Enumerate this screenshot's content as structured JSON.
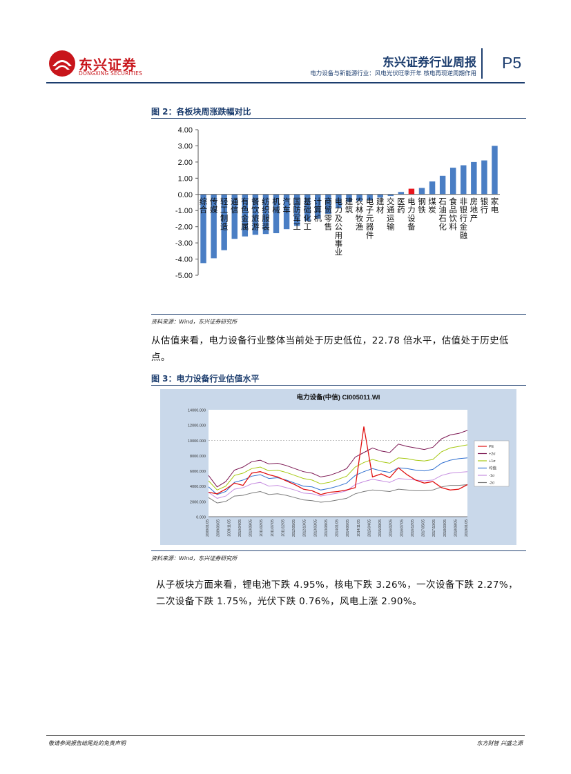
{
  "header": {
    "logo_cn": "东兴证券",
    "logo_en": "DONGXING SECURITIES",
    "title": "东兴证券行业周报",
    "subtitle": "电力设备与新能源行业：风电光伏旺季开年 核电再现逆周期作用",
    "page": "P5"
  },
  "figure2": {
    "title": "图 2：各板块周涨跌幅对比",
    "source": "资料来源：Wind，东兴证券研究所"
  },
  "para1": {
    "text": "从估值来看，电力设备行业整体当前处于历史低位，22.78 倍水平，估值处于历史低点。"
  },
  "figure3": {
    "title": "图 3：电力设备行业估值水平",
    "source": "资料来源：Wind，东兴证券研究所"
  },
  "para2": {
    "line1": "从子板块方面来看，锂电池下跌 4.95%，核电下跌 3.26%，一次设备下跌 2.27%，",
    "line2": "二次设备下跌 1.75%，光伏下跌 0.76%，风电上涨 2.90%。"
  },
  "footer": {
    "left": "敬请参阅报告结尾处的免责声明",
    "right": "东方财智 兴盛之源"
  },
  "colors": {
    "navy": "#1c3d6e",
    "bar": "#4a7ec4",
    "highlight": "#e8141b",
    "brand_red": "#c8151b"
  },
  "chart_data": [
    {
      "type": "bar",
      "title": "图 2：各板块周涨跌幅对比",
      "categories": [
        "综合",
        "传媒",
        "轻工制造",
        "通信",
        "有色金属",
        "餐饮旅游",
        "纺织服装",
        "机械",
        "汽车",
        "国防军工",
        "基础化工",
        "计算机",
        "商贸零售",
        "电力及公用事业",
        "建筑",
        "农林牧渔",
        "电子元器件",
        "建材",
        "交通运输",
        "医药",
        "电力设备",
        "钢铁",
        "煤炭",
        "石油石化",
        "食品饮料",
        "非银行金融",
        "房地产",
        "银行",
        "家电"
      ],
      "values": [
        -4.25,
        -3.95,
        -3.45,
        -2.75,
        -2.6,
        -2.5,
        -2.45,
        -2.4,
        -2.15,
        -1.95,
        -1.65,
        -1.5,
        -1.2,
        -0.85,
        -0.45,
        -0.4,
        -0.35,
        -0.2,
        -0.1,
        0.15,
        0.35,
        0.4,
        0.8,
        1.15,
        1.65,
        1.8,
        2.0,
        2.1,
        3.0
      ],
      "highlight": "电力设备",
      "yticks": [
        "4.00",
        "3.00",
        "2.00",
        "1.00",
        "0.00",
        "-1.00",
        "-2.00",
        "-3.00",
        "-4.00",
        "-5.00"
      ],
      "ylim": [
        -5,
        4
      ],
      "xlabel": "",
      "ylabel": ""
    },
    {
      "type": "line",
      "title": "电力设备(中信) CI005011.WI",
      "x_ticks": [
        "2009/01/05",
        "2009/06/05",
        "2009/11/05",
        "2010/04/05",
        "2010/09/05",
        "2011/02/05",
        "2011/07/05",
        "2011/12/05",
        "2012/05/05",
        "2012/10/05",
        "2013/03/05",
        "2013/08/05",
        "2014/01/05",
        "2014/06/05",
        "2014/11/05",
        "2015/04/05",
        "2015/09/05",
        "2016/02/05",
        "2016/07/05",
        "2016/12/05",
        "2017/05/05",
        "2017/10/05",
        "2018/03/05",
        "2018/08/05",
        "2019/01/05"
      ],
      "y_ticks": [
        "0.000",
        "2000.000",
        "4000.000",
        "6000.000",
        "8000.000",
        "10000.000",
        "12000.000",
        "14000.000"
      ],
      "ylim": [
        0,
        14000
      ],
      "legend": [
        "PE",
        "+2σ",
        "+1σ",
        "均值",
        "-1σ",
        "-2σ"
      ],
      "series": [
        {
          "name": "PE",
          "color": "#e01010",
          "values": [
            3200,
            3000,
            3600,
            4400,
            4100,
            5700,
            5900,
            5500,
            5200,
            4700,
            4200,
            3600,
            3400,
            2900,
            3200,
            3300,
            3500,
            3800,
            11800,
            5200,
            5600,
            5100,
            6400,
            5500,
            4800,
            4400,
            4600,
            3800,
            3500,
            3600,
            4200
          ]
        },
        {
          "name": "+2σ",
          "color": "#7a1450",
          "values": [
            5400,
            3900,
            4600,
            6100,
            6500,
            7200,
            7400,
            6900,
            7000,
            6700,
            6300,
            5900,
            5700,
            5200,
            5400,
            5800,
            6300,
            7800,
            8400,
            9000,
            8600,
            8400,
            9500,
            9200,
            9000,
            8800,
            9100,
            10200,
            10700,
            10900,
            11300
          ]
        },
        {
          "name": "+1σ",
          "color": "#a6c810",
          "values": [
            4700,
            3500,
            4000,
            5400,
            5700,
            6300,
            6500,
            6000,
            6100,
            5800,
            5400,
            5000,
            4800,
            4300,
            4500,
            4900,
            5300,
            6500,
            7100,
            7500,
            7200,
            7000,
            7700,
            7600,
            7400,
            7300,
            7500,
            8500,
            9000,
            9200,
            9400
          ]
        },
        {
          "name": "均值",
          "color": "#2f6fd0",
          "values": [
            3900,
            2900,
            3300,
            4500,
            4800,
            5300,
            5500,
            5000,
            5100,
            4800,
            4400,
            4000,
            3900,
            3500,
            3700,
            4000,
            4400,
            5400,
            5900,
            6300,
            6000,
            5800,
            6400,
            6300,
            6100,
            6000,
            6200,
            7000,
            7400,
            7600,
            7700
          ]
        },
        {
          "name": "-1σ",
          "color": "#c68de0",
          "values": [
            3200,
            2400,
            2700,
            3600,
            3800,
            4300,
            4500,
            4000,
            4100,
            3800,
            3500,
            3100,
            3000,
            2700,
            2900,
            3100,
            3400,
            4200,
            4600,
            4900,
            4700,
            4500,
            5000,
            4900,
            4800,
            4700,
            4800,
            5400,
            5700,
            5800,
            5900
          ]
        },
        {
          "name": "-2σ",
          "color": "#7a7a7a",
          "values": [
            2500,
            1800,
            2000,
            2700,
            2800,
            3100,
            3300,
            2900,
            3000,
            2800,
            2500,
            2200,
            2100,
            1900,
            2000,
            2200,
            2400,
            3000,
            3300,
            3500,
            3400,
            3300,
            3600,
            3500,
            3400,
            3400,
            3500,
            3900,
            4100,
            4100,
            4200
          ]
        }
      ],
      "xlabel": "",
      "ylabel": ""
    }
  ]
}
